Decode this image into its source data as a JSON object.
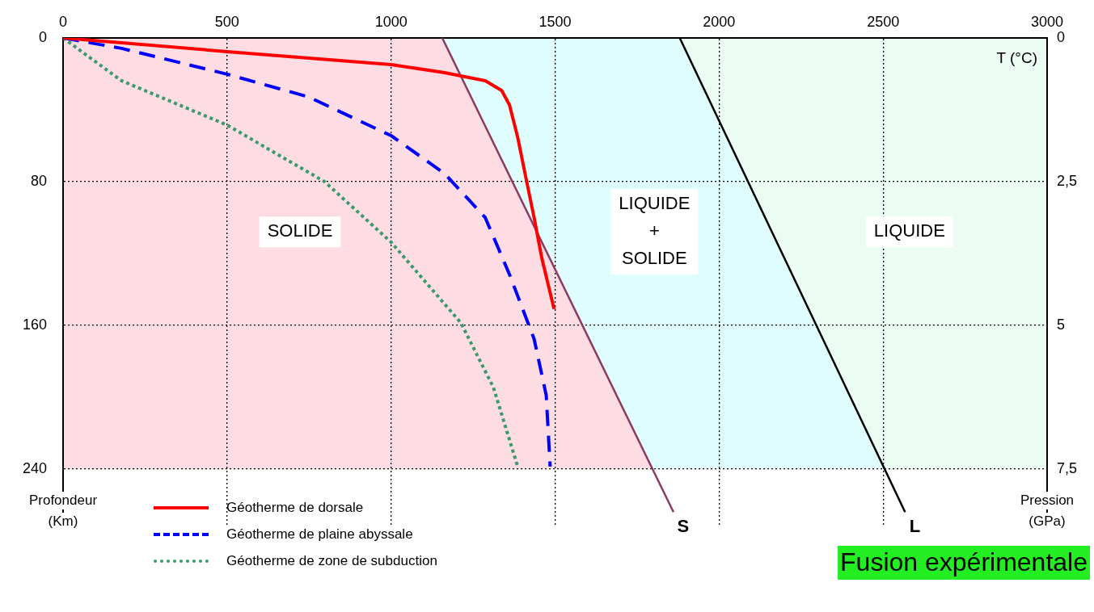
{
  "chart_data": {
    "type": "line",
    "xlabel": "T (°C)",
    "ylabel": "Profondeur (Km)",
    "y2label": "Pression (GPa)",
    "xlim": [
      0,
      3000
    ],
    "xticks": [
      0,
      500,
      1000,
      1500,
      2000,
      2500,
      3000
    ],
    "ylim": [
      272,
      0
    ],
    "yticks": [
      0,
      80,
      160,
      240
    ],
    "y2lim": [
      8.5,
      0
    ],
    "y2ticks": [
      0,
      {
        "value": 2.5,
        "label": "2,5"
      },
      5,
      {
        "value": 7.5,
        "label": "7,5"
      }
    ],
    "grid": true,
    "legend": "bottom left",
    "marker": "none",
    "series": [
      {
        "name": "Géotherme de dorsale",
        "color": "#ff0000",
        "line_style": "solid",
        "x": [
          0,
          500,
          1000,
          1163,
          1287,
          1337,
          1361,
          1386,
          1411,
          1436,
          1460,
          1497
        ],
        "values": [
          0,
          7.6,
          14.8,
          19.3,
          23.8,
          29.2,
          37.3,
          55.3,
          77.8,
          100,
          123,
          151
        ]
      },
      {
        "name": "Géotherme de plaine abyssale",
        "color": "#0000ff",
        "line_style": "dashed",
        "x": [
          0,
          178,
          500,
          748,
          1000,
          1163,
          1287,
          1361,
          1436,
          1473,
          1485
        ],
        "values": [
          0,
          5.8,
          20.2,
          32.8,
          54.4,
          75.5,
          100,
          131.7,
          167.6,
          199,
          238.7
        ]
      },
      {
        "name": "Géotherme de zone de subduction",
        "color": "#3a9a6a",
        "line_style": "dotted",
        "x": [
          0,
          178,
          500,
          797,
          1000,
          1213,
          1312,
          1386
        ],
        "values": [
          0,
          23.8,
          48.5,
          80,
          113.7,
          158.7,
          194.6,
          238.7
        ]
      },
      {
        "color": "#8b3a62",
        "line_style": "solid",
        "x": [
          1156,
          1861
        ],
        "values": [
          0,
          264
        ]
      },
      {
        "color": "#000000",
        "line_style": "solid",
        "x": [
          1880,
          2567
        ],
        "values": [
          0,
          264
        ]
      }
    ],
    "annotations": [
      "SOLIDE",
      "LIQUIDE\n+\nSOLIDE",
      "LIQUIDE",
      {
        "text": "S",
        "x": 1861,
        "y": 264
      },
      {
        "text": "L",
        "x": 2567,
        "y": 264
      },
      "Fusion expérimentale"
    ]
  }
}
